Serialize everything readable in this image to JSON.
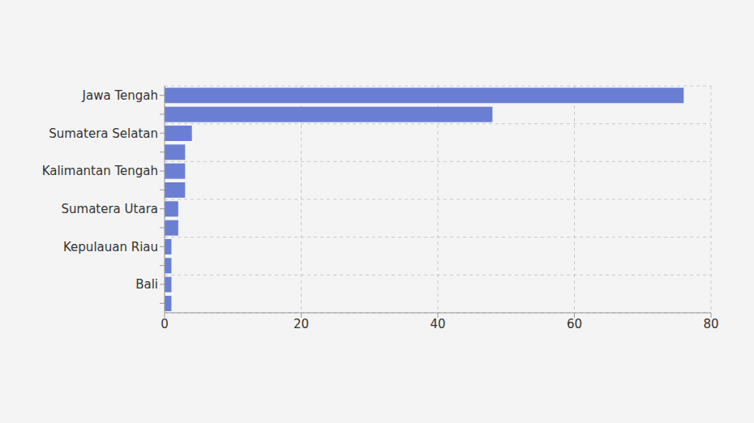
{
  "chart_data": {
    "type": "bar",
    "orientation": "horizontal",
    "categories": [
      "Jawa Tengah",
      null,
      "Sumatera Selatan",
      null,
      "Kalimantan Tengah",
      null,
      "Sumatera Utara",
      null,
      "Kepulauan Riau",
      null,
      "Bali",
      null
    ],
    "values": [
      76,
      48,
      4,
      3,
      3,
      3,
      2,
      2,
      1,
      1,
      1,
      1
    ],
    "color": "#5b72cf",
    "xlim": [
      0,
      80
    ],
    "xticks": [
      0,
      20,
      40,
      60,
      80
    ],
    "grid": true
  }
}
